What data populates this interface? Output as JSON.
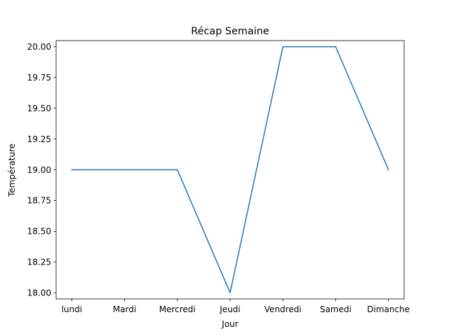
{
  "chart_data": {
    "type": "line",
    "title": "Récap Semaine",
    "xlabel": "Jour",
    "ylabel": "Température",
    "categories": [
      "lundi",
      "Mardi",
      "Mercredi",
      "Jeudi",
      "Vendredi",
      "Samedi",
      "Dimanche"
    ],
    "series": [
      {
        "values": [
          19,
          19,
          19,
          18,
          20,
          20,
          19
        ],
        "color": "#1f77b4"
      }
    ],
    "ylim": [
      17.95,
      20.05
    ],
    "yticks": [
      18.0,
      18.25,
      18.5,
      18.75,
      19.0,
      19.25,
      19.5,
      19.75,
      20.0
    ],
    "ytick_labels": [
      "18.00",
      "18.25",
      "18.50",
      "18.75",
      "19.00",
      "19.25",
      "19.50",
      "19.75",
      "20.00"
    ],
    "grid": false,
    "legend": "none"
  }
}
